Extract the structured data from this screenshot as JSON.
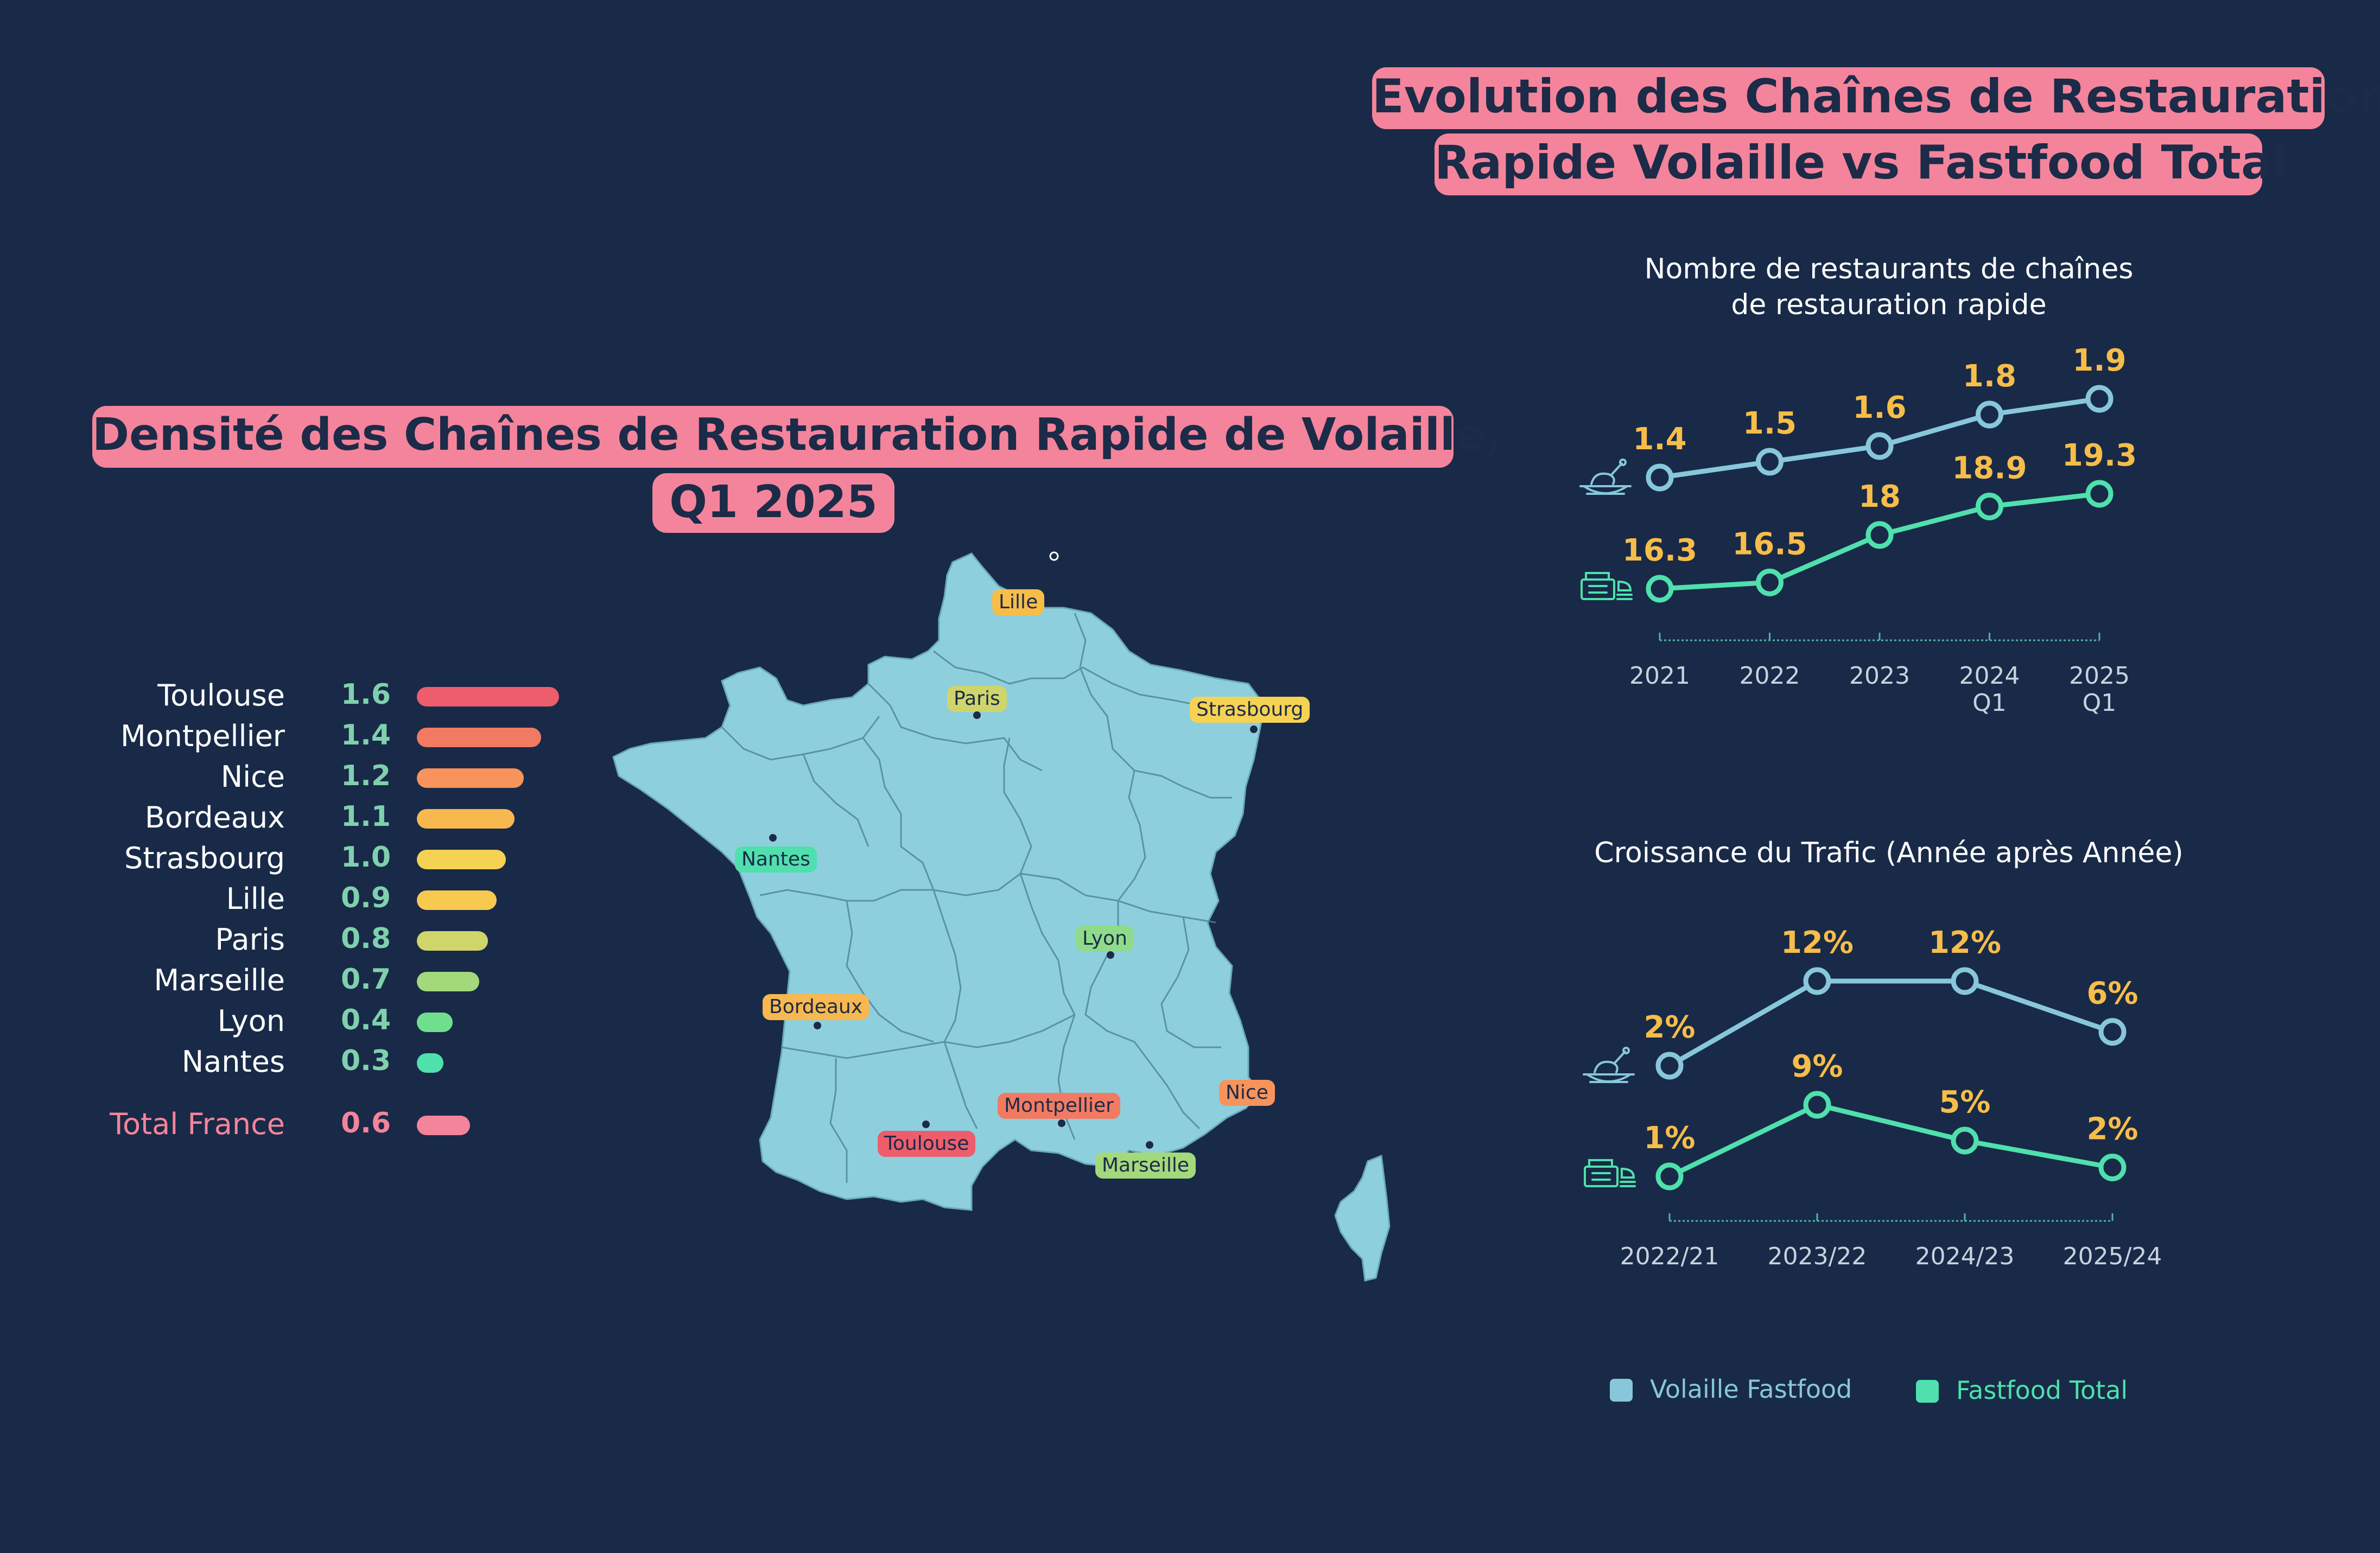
{
  "colors": {
    "background": "#182a47",
    "pink": "#f4849b",
    "volaille": "#88c7db",
    "fastfood_total": "#4fe0ad",
    "value_label": "#f7bd49",
    "map_fill": "#8ecfdd"
  },
  "main_title": {
    "line1": "Evolution des Chaînes de Restauration",
    "line2": "Rapide Volaille vs Fastfood Total"
  },
  "density": {
    "title_line1": "Densité des Chaînes de Restauration Rapide de Volaille,",
    "title_line2": "Q1 2025",
    "cities": [
      {
        "name": "Toulouse",
        "value": "1.6",
        "color": "#ee5d6c"
      },
      {
        "name": "Montpellier",
        "value": "1.4",
        "color": "#f27a62"
      },
      {
        "name": "Nice",
        "value": "1.2",
        "color": "#f7935b"
      },
      {
        "name": "Bordeaux",
        "value": "1.1",
        "color": "#f8b84f"
      },
      {
        "name": "Strasbourg",
        "value": "1.0",
        "color": "#f6d253"
      },
      {
        "name": "Lille",
        "value": "0.9",
        "color": "#f7c94f"
      },
      {
        "name": "Paris",
        "value": "0.8",
        "color": "#cfd56a"
      },
      {
        "name": "Marseille",
        "value": "0.7",
        "color": "#a3d97b"
      },
      {
        "name": "Lyon",
        "value": "0.4",
        "color": "#6fdf8e"
      },
      {
        "name": "Nantes",
        "value": "0.3",
        "color": "#4fe0ad"
      }
    ],
    "total": {
      "name": "Total France",
      "value": "0.6",
      "color": "#f4849b"
    }
  },
  "map_labels": [
    {
      "name": "Lille",
      "color": "#f7bd49"
    },
    {
      "name": "Paris",
      "color": "#cfd56a"
    },
    {
      "name": "Strasbourg",
      "color": "#f6d253"
    },
    {
      "name": "Nantes",
      "color": "#4fe0ad"
    },
    {
      "name": "Lyon",
      "color": "#8fdb8a"
    },
    {
      "name": "Bordeaux",
      "color": "#f8b84f"
    },
    {
      "name": "Nice",
      "color": "#f7935b"
    },
    {
      "name": "Montpellier",
      "color": "#f27a62"
    },
    {
      "name": "Toulouse",
      "color": "#ee5d6c"
    },
    {
      "name": "Marseille",
      "color": "#a3d97b"
    }
  ],
  "chart_data": [
    {
      "type": "line",
      "title": "Nombre de restaurants de chaînes de restauration rapide",
      "title_line1": "Nombre de restaurants de chaînes",
      "title_line2": "de restauration rapide",
      "categories": [
        [
          "2021"
        ],
        [
          "2022"
        ],
        [
          "2023"
        ],
        [
          "2024",
          "Q1"
        ],
        [
          "2025",
          "Q1"
        ]
      ],
      "series": [
        {
          "name": "Volaille Fastfood",
          "values": [
            1.4,
            1.5,
            1.6,
            1.8,
            1.9
          ],
          "labels": [
            "1.4",
            "1.5",
            "1.6",
            "1.8",
            "1.9"
          ],
          "color": "#88c7db",
          "icon": "chicken-dish-icon"
        },
        {
          "name": "Fastfood Total",
          "values": [
            16.3,
            16.5,
            18,
            18.9,
            19.3
          ],
          "labels": [
            "16.3",
            "16.5",
            "18",
            "18.9",
            "19.3"
          ],
          "color": "#4fe0ad",
          "icon": "fastfood-icon"
        }
      ]
    },
    {
      "type": "line",
      "title": "Croissance du Trafic (Année après Année)",
      "categories": [
        [
          "2022/21"
        ],
        [
          "2023/22"
        ],
        [
          "2024/23"
        ],
        [
          "2025/24"
        ]
      ],
      "series": [
        {
          "name": "Volaille Fastfood",
          "values": [
            2,
            12,
            12,
            6
          ],
          "labels": [
            "2%",
            "12%",
            "12%",
            "6%"
          ],
          "color": "#88c7db",
          "icon": "chicken-dish-icon"
        },
        {
          "name": "Fastfood Total",
          "values": [
            1,
            9,
            5,
            2
          ],
          "labels": [
            "1%",
            "9%",
            "5%",
            "2%"
          ],
          "color": "#4fe0ad",
          "icon": "fastfood-icon"
        }
      ]
    }
  ],
  "legend": {
    "items": [
      {
        "label": "Volaille Fastfood",
        "color": "#88c7db"
      },
      {
        "label": "Fastfood Total",
        "color": "#4fe0ad"
      }
    ]
  }
}
